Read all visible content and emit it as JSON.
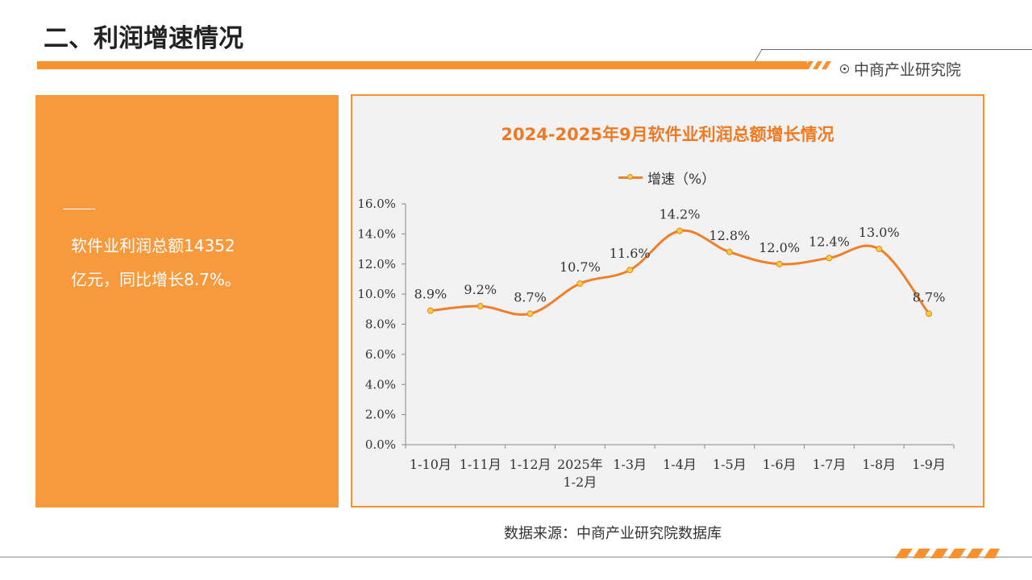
{
  "page": {
    "title": "二、利润增速情况",
    "brand": "中商产业研究院",
    "source": "数据来源：中商产业研究院数据库"
  },
  "summary": {
    "line1": "软件业利润总额14352",
    "line2": "亿元，同比增长8.7%。"
  },
  "colors": {
    "accent": "#f7922e",
    "panel": "#f79a3e",
    "line": "#ee7f2b",
    "marker": "#f2d23b",
    "title": "#f07a23"
  },
  "chart_data": {
    "type": "line",
    "title": "2024-2025年9月软件业利润总额增长情况",
    "categories": [
      "1-10月",
      "1-11月",
      "1-12月",
      "2025年\n1-2月",
      "1-3月",
      "1-4月",
      "1-5月",
      "1-6月",
      "1-7月",
      "1-8月",
      "1-9月"
    ],
    "series": [
      {
        "name": "增速（%）",
        "values": [
          8.9,
          9.2,
          8.7,
          10.7,
          11.6,
          14.2,
          12.8,
          12.0,
          12.4,
          13.0,
          8.7
        ]
      }
    ],
    "data_labels": [
      "8.9%",
      "9.2%",
      "8.7%",
      "10.7%",
      "11.6%",
      "14.2%",
      "12.8%",
      "12.0%",
      "12.4%",
      "13.0%",
      "8.7%"
    ],
    "y_ticks": [
      "0.0%",
      "2.0%",
      "4.0%",
      "6.0%",
      "8.0%",
      "10.0%",
      "12.0%",
      "14.0%",
      "16.0%"
    ],
    "ylim": [
      0,
      16
    ],
    "legend": "top-center",
    "smooth": true,
    "grid": false
  }
}
